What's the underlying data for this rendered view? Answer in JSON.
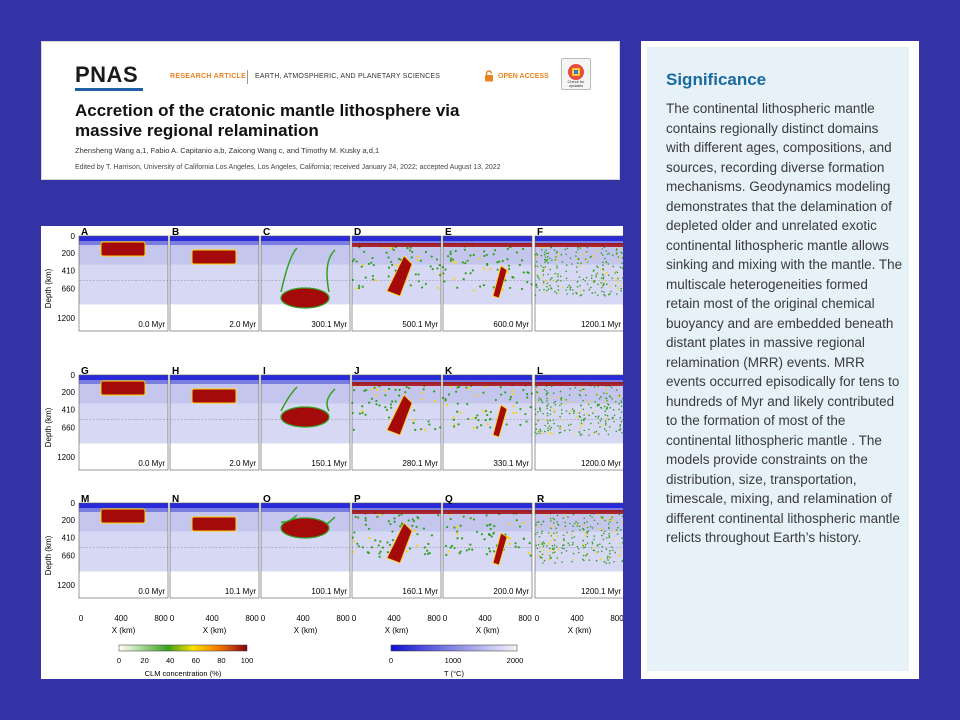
{
  "header": {
    "journal_logo": "PNAS",
    "article_type": "RESEARCH ARTICLE",
    "section": "EARTH, ATMOSPHERIC, AND PLANETARY SCIENCES",
    "access": "OPEN ACCESS",
    "check_updates": "Check for updates",
    "title": "Accretion of the cratonic mantle lithosphere via massive regional relamination",
    "authors": "Zhensheng Wang a,1, Fabio A. Capitanio a,b, Zaicong Wang c, and Timothy M. Kusky a,d,1",
    "edited": "Edited by T. Harrison, University of California Los Angeles, Los Angeles, California; received January 24, 2022; accepted August 13, 2022"
  },
  "figure": {
    "colors": {
      "mantle": "#d6d8f4",
      "upper": "#c4c6ee",
      "crust_low": "#7b7ee0",
      "crust_top": "#2a2ad8",
      "relict": "#a50a0a",
      "relict_rim": "#ffd400",
      "mix": "#33a020",
      "blank": "#ffffff"
    },
    "depth_axis_label": "Depth (km)",
    "depth_ticks": [
      "0",
      "200",
      "410",
      "660",
      "1200"
    ],
    "x_axis_label": "X (km)",
    "x_ticks": [
      "0",
      "400",
      "800"
    ],
    "panels": [
      {
        "id": "A",
        "time": "0.0 Myr"
      },
      {
        "id": "B",
        "time": "2.0 Myr"
      },
      {
        "id": "C",
        "time": "300.1 Myr"
      },
      {
        "id": "D",
        "time": "500.1 Myr"
      },
      {
        "id": "E",
        "time": "600.0 Myr"
      },
      {
        "id": "F",
        "time": "1200.1 Myr"
      },
      {
        "id": "G",
        "time": "0.0 Myr"
      },
      {
        "id": "H",
        "time": "2.0 Myr"
      },
      {
        "id": "I",
        "time": "150.1 Myr"
      },
      {
        "id": "J",
        "time": "280.1 Myr"
      },
      {
        "id": "K",
        "time": "330.1 Myr"
      },
      {
        "id": "L",
        "time": "1200.0 Myr"
      },
      {
        "id": "M",
        "time": "0.0 Myr"
      },
      {
        "id": "N",
        "time": "10.1 Myr"
      },
      {
        "id": "O",
        "time": "100.1 Myr"
      },
      {
        "id": "P",
        "time": "160.1 Myr"
      },
      {
        "id": "Q",
        "time": "200.0 Myr"
      },
      {
        "id": "R",
        "time": "1200.1 Myr"
      }
    ],
    "colorbar_clm": {
      "label": "CLM concentration (%)",
      "ticks": [
        "0",
        "20",
        "40",
        "60",
        "80",
        "100"
      ]
    },
    "colorbar_t": {
      "label": "T (°C)",
      "ticks": [
        "0",
        "1000",
        "2000"
      ]
    }
  },
  "significance": {
    "heading": "Significance",
    "body": "The continental lithospheric mantle contains regionally distinct domains with different ages, compositions, and sources, recording diverse formation mechanisms. Geodynamics modeling demonstrates that the delamination of depleted older and unrelated exotic continental lithospheric mantle allows sinking and mixing with the mantle. The multiscale heterogeneities formed retain most of the original chemical buoyancy and are embedded beneath distant plates in massive regional relamination (MRR) events. MRR events occurred episodically for tens to hundreds of Myr and likely contributed to the formation of most of the continental lithospheric mantle . The models provide constraints on the distribution, size, transportation, timescale, mixing, and relamination of different continental lithospheric mantle relicts throughout Earth’s history."
  }
}
